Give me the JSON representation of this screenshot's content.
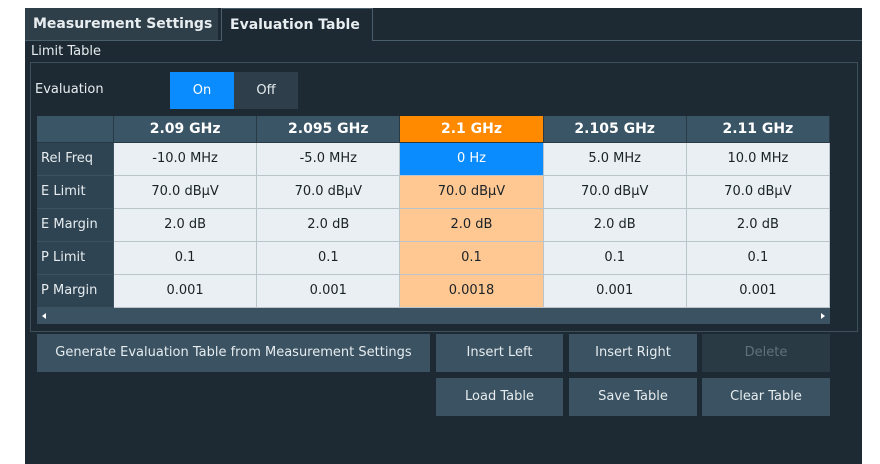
{
  "tabs": [
    "Measurement Settings",
    "Evaluation Table"
  ],
  "group_title": "Limit Table",
  "evaluation": {
    "label": "Evaluation",
    "options": [
      "On",
      "Off"
    ]
  },
  "table": {
    "columns": [
      "2.09 GHz",
      "2.095 GHz",
      "2.1 GHz",
      "2.105 GHz",
      "2.11 GHz"
    ],
    "rows": [
      {
        "label": "Rel Freq",
        "cells": [
          "-10.0 MHz",
          "-5.0 MHz",
          "0 Hz",
          "5.0 MHz",
          "10.0 MHz"
        ]
      },
      {
        "label": "E Limit",
        "cells": [
          "70.0 dBµV",
          "70.0 dBµV",
          "70.0 dBµV",
          "70.0 dBµV",
          "70.0 dBµV"
        ]
      },
      {
        "label": "E Margin",
        "cells": [
          "2.0 dB",
          "2.0 dB",
          "2.0 dB",
          "2.0 dB",
          "2.0 dB"
        ]
      },
      {
        "label": "P Limit",
        "cells": [
          "0.1",
          "0.1",
          "0.1",
          "0.1",
          "0.1"
        ]
      },
      {
        "label": "P Margin",
        "cells": [
          "0.001",
          "0.001",
          "0.0018",
          "0.001",
          "0.001"
        ]
      }
    ]
  },
  "buttons": {
    "generate": "Generate Evaluation Table from Measurement Settings",
    "insert_left": "Insert Left",
    "insert_right": "Insert Right",
    "delete": "Delete",
    "load": "Load Table",
    "save": "Save Table",
    "clear": "Clear Table"
  }
}
